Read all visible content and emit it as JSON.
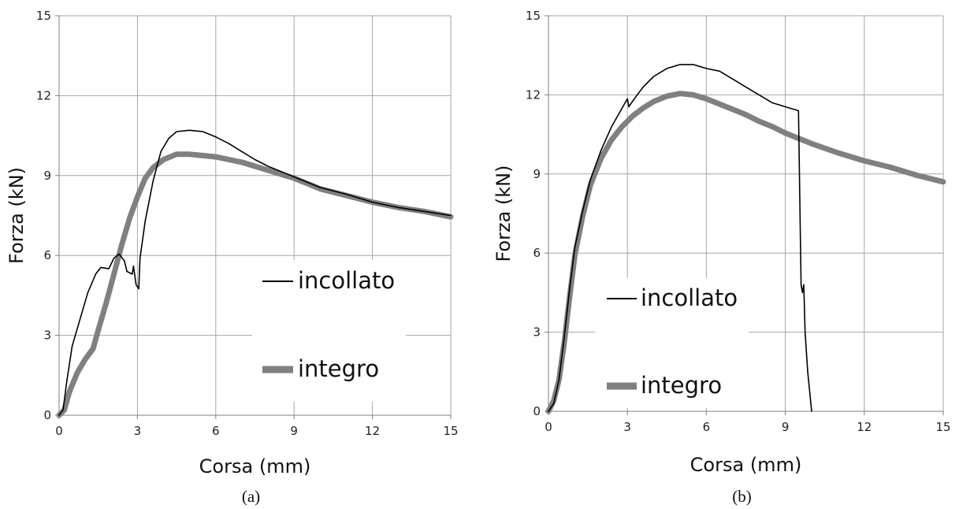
{
  "chart_data": [
    {
      "type": "line",
      "caption": "(a)",
      "xlabel": "Corsa (mm)",
      "ylabel": "Forza (kN)",
      "xlim": [
        0,
        15
      ],
      "ylim": [
        0,
        15
      ],
      "xticks": [
        0,
        3,
        6,
        9,
        12,
        15
      ],
      "yticks": [
        0,
        3,
        6,
        9,
        12,
        15
      ],
      "grid": "vertical and horizontal",
      "legend": "bottom-right, inside plot",
      "series": [
        {
          "name": "incollato",
          "color": "#000000",
          "style": "thin",
          "points": [
            [
              0,
              0
            ],
            [
              0.15,
              0.2
            ],
            [
              0.3,
              1.3
            ],
            [
              0.5,
              2.6
            ],
            [
              0.8,
              3.6
            ],
            [
              1.1,
              4.6
            ],
            [
              1.4,
              5.3
            ],
            [
              1.6,
              5.55
            ],
            [
              1.9,
              5.5
            ],
            [
              2.1,
              5.9
            ],
            [
              2.3,
              6.05
            ],
            [
              2.5,
              5.8
            ],
            [
              2.6,
              5.4
            ],
            [
              2.8,
              5.3
            ],
            [
              2.85,
              5.6
            ],
            [
              2.95,
              4.9
            ],
            [
              3.05,
              4.75
            ],
            [
              3.1,
              5.9
            ],
            [
              3.3,
              7.3
            ],
            [
              3.6,
              8.8
            ],
            [
              3.9,
              9.9
            ],
            [
              4.2,
              10.4
            ],
            [
              4.5,
              10.65
            ],
            [
              5.0,
              10.7
            ],
            [
              5.5,
              10.65
            ],
            [
              6.0,
              10.45
            ],
            [
              6.5,
              10.2
            ],
            [
              7.0,
              9.9
            ],
            [
              7.5,
              9.6
            ],
            [
              8.0,
              9.35
            ],
            [
              8.5,
              9.15
            ],
            [
              9.0,
              8.95
            ],
            [
              9.5,
              8.75
            ],
            [
              10.0,
              8.55
            ],
            [
              11.0,
              8.3
            ],
            [
              12.0,
              8.0
            ],
            [
              13.0,
              7.8
            ],
            [
              14.0,
              7.65
            ],
            [
              15.0,
              7.5
            ]
          ]
        },
        {
          "name": "integro",
          "color": "#808080",
          "style": "thick",
          "points": [
            [
              0,
              0
            ],
            [
              0.2,
              0.2
            ],
            [
              0.4,
              0.9
            ],
            [
              0.7,
              1.6
            ],
            [
              1.0,
              2.1
            ],
            [
              1.3,
              2.5
            ],
            [
              1.5,
              3.2
            ],
            [
              1.8,
              4.2
            ],
            [
              2.1,
              5.3
            ],
            [
              2.4,
              6.4
            ],
            [
              2.7,
              7.4
            ],
            [
              3.0,
              8.2
            ],
            [
              3.3,
              8.9
            ],
            [
              3.6,
              9.3
            ],
            [
              4.0,
              9.6
            ],
            [
              4.5,
              9.8
            ],
            [
              5.0,
              9.8
            ],
            [
              5.5,
              9.75
            ],
            [
              6.0,
              9.7
            ],
            [
              6.5,
              9.6
            ],
            [
              7.0,
              9.5
            ],
            [
              7.5,
              9.35
            ],
            [
              8.0,
              9.2
            ],
            [
              8.5,
              9.05
            ],
            [
              9.0,
              8.9
            ],
            [
              9.5,
              8.7
            ],
            [
              10.0,
              8.5
            ],
            [
              11.0,
              8.25
            ],
            [
              12.0,
              8.0
            ],
            [
              13.0,
              7.8
            ],
            [
              14.0,
              7.65
            ],
            [
              15.0,
              7.45
            ]
          ]
        }
      ]
    },
    {
      "type": "line",
      "caption": "(b)",
      "xlabel": "Corsa (mm)",
      "ylabel": "Forza (kN)",
      "xlim": [
        0,
        15
      ],
      "ylim": [
        0,
        15
      ],
      "xticks": [
        0,
        3,
        6,
        9,
        12,
        15
      ],
      "yticks": [
        0,
        3,
        6,
        9,
        12,
        15
      ],
      "grid": "vertical and horizontal",
      "legend": "bottom-left, inside plot",
      "series": [
        {
          "name": "incollato",
          "color": "#000000",
          "style": "thin",
          "points": [
            [
              0,
              0
            ],
            [
              0.2,
              0.3
            ],
            [
              0.4,
              1.2
            ],
            [
              0.6,
              2.8
            ],
            [
              0.8,
              4.6
            ],
            [
              1.0,
              6.2
            ],
            [
              1.3,
              7.6
            ],
            [
              1.6,
              8.8
            ],
            [
              2.0,
              9.9
            ],
            [
              2.4,
              10.8
            ],
            [
              2.8,
              11.5
            ],
            [
              3.0,
              11.85
            ],
            [
              3.05,
              11.55
            ],
            [
              3.3,
              11.9
            ],
            [
              3.6,
              12.3
            ],
            [
              4.0,
              12.7
            ],
            [
              4.5,
              13.0
            ],
            [
              5.0,
              13.15
            ],
            [
              5.5,
              13.15
            ],
            [
              6.0,
              13.0
            ],
            [
              6.5,
              12.9
            ],
            [
              7.0,
              12.6
            ],
            [
              7.5,
              12.3
            ],
            [
              8.0,
              12.0
            ],
            [
              8.5,
              11.7
            ],
            [
              9.0,
              11.55
            ],
            [
              9.5,
              11.4
            ],
            [
              9.55,
              8.0
            ],
            [
              9.6,
              4.8
            ],
            [
              9.65,
              4.5
            ],
            [
              9.7,
              4.8
            ],
            [
              9.75,
              3.0
            ],
            [
              9.85,
              1.5
            ],
            [
              10.0,
              0
            ]
          ]
        },
        {
          "name": "integro",
          "color": "#808080",
          "style": "thick",
          "points": [
            [
              0,
              0
            ],
            [
              0.2,
              0.4
            ],
            [
              0.4,
              1.2
            ],
            [
              0.6,
              2.6
            ],
            [
              0.8,
              4.3
            ],
            [
              1.0,
              5.9
            ],
            [
              1.3,
              7.4
            ],
            [
              1.6,
              8.6
            ],
            [
              2.0,
              9.6
            ],
            [
              2.4,
              10.3
            ],
            [
              2.8,
              10.8
            ],
            [
              3.2,
              11.2
            ],
            [
              3.6,
              11.5
            ],
            [
              4.0,
              11.75
            ],
            [
              4.5,
              11.95
            ],
            [
              5.0,
              12.05
            ],
            [
              5.5,
              12.0
            ],
            [
              6.0,
              11.85
            ],
            [
              6.5,
              11.65
            ],
            [
              7.0,
              11.45
            ],
            [
              7.5,
              11.25
            ],
            [
              8.0,
              11.0
            ],
            [
              8.5,
              10.8
            ],
            [
              9.0,
              10.55
            ],
            [
              9.5,
              10.35
            ],
            [
              10.0,
              10.15
            ],
            [
              11.0,
              9.8
            ],
            [
              12.0,
              9.5
            ],
            [
              13.0,
              9.25
            ],
            [
              14.0,
              8.95
            ],
            [
              15.0,
              8.7
            ]
          ]
        }
      ]
    }
  ]
}
